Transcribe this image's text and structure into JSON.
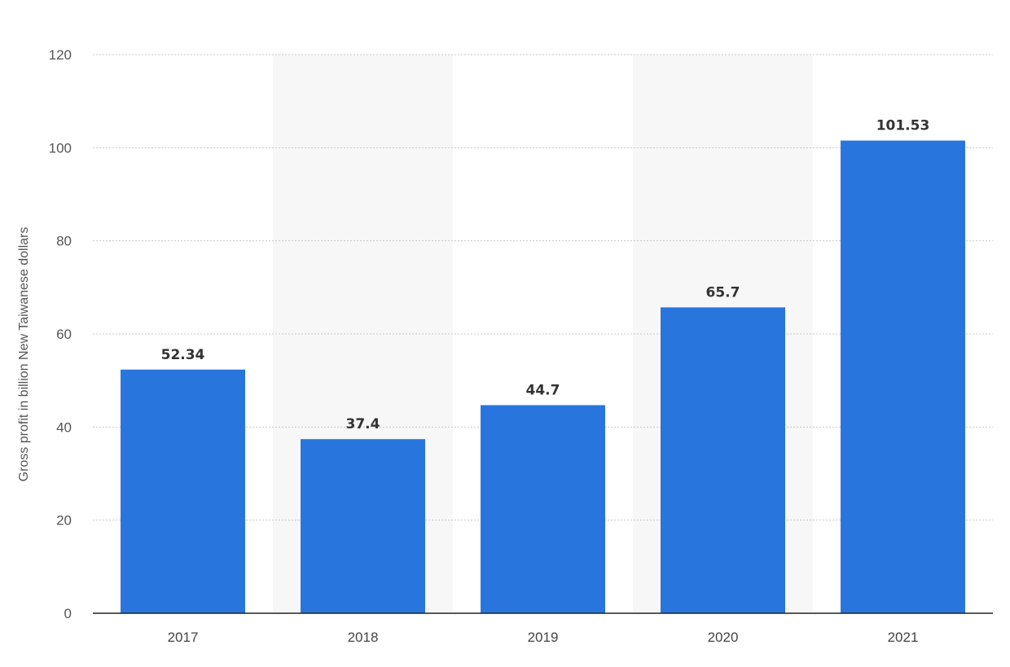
{
  "chart_data": {
    "type": "bar",
    "title": "",
    "xlabel": "",
    "ylabel": "Gross profit in billion New Taiwanese dollars",
    "categories": [
      "2017",
      "2018",
      "2019",
      "2020",
      "2021"
    ],
    "values": [
      52.34,
      37.4,
      44.7,
      65.7,
      101.53
    ],
    "value_labels": [
      "52.34",
      "37.4",
      "44.7",
      "65.7",
      "101.53"
    ],
    "ylim": [
      0,
      120
    ],
    "yticks": [
      0,
      20,
      40,
      60,
      80,
      100,
      120
    ],
    "grid": true,
    "legend": "none",
    "colors": {
      "bar": "#2876dd",
      "alternate_band": "#f7f7f7"
    }
  }
}
